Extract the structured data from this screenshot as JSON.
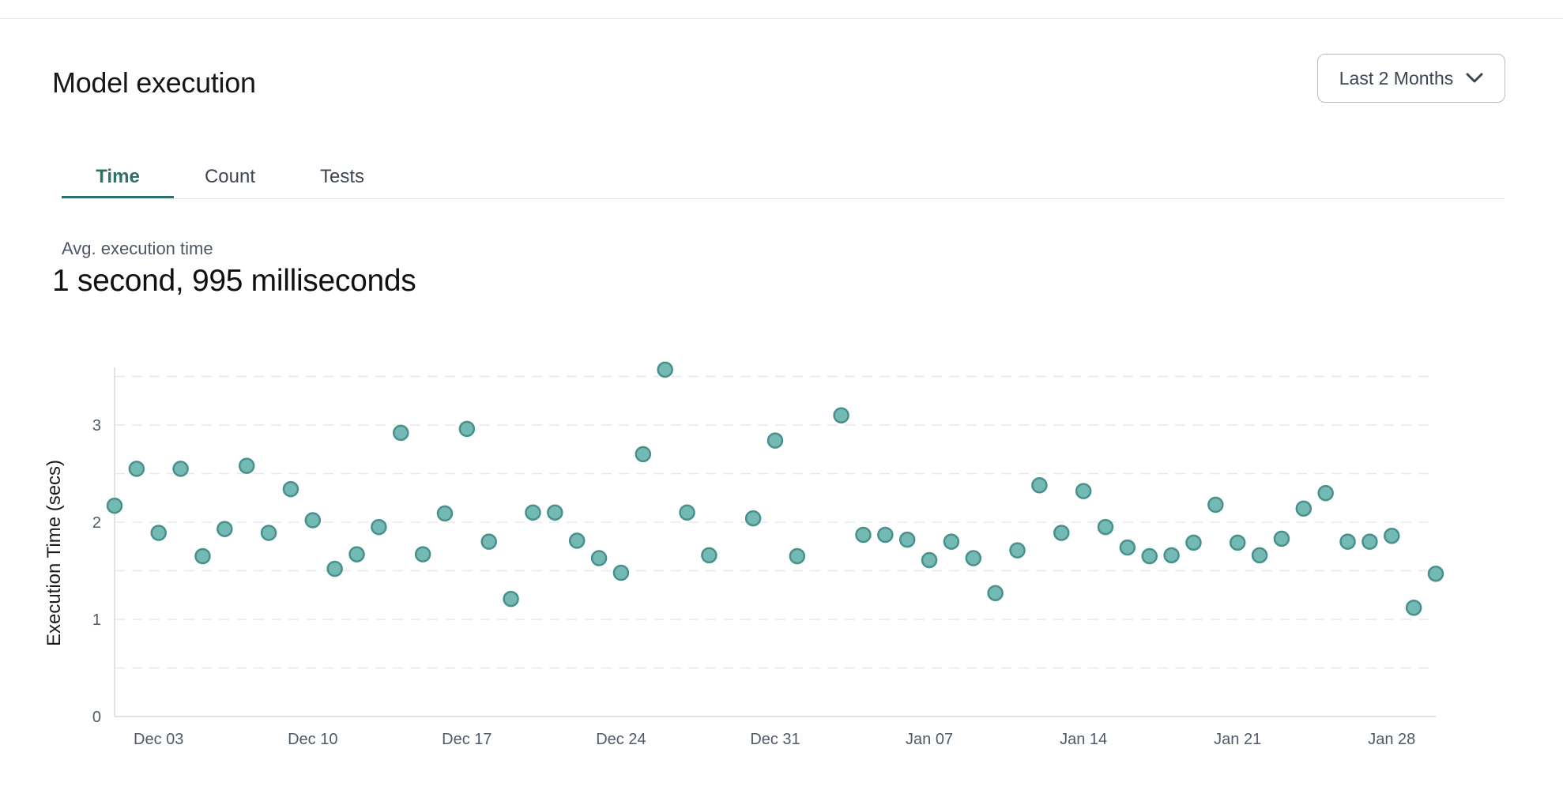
{
  "page": {
    "title": "Model execution"
  },
  "controls": {
    "time_range_dropdown": {
      "value": "Last 2 Months",
      "icon": "chevron-down-icon"
    }
  },
  "tabs": [
    {
      "label": "Time",
      "active": true
    },
    {
      "label": "Count",
      "active": false
    },
    {
      "label": "Tests",
      "active": false
    }
  ],
  "stat": {
    "label": "Avg. execution time",
    "value": "1 second, 995 milliseconds"
  },
  "chart_data": {
    "type": "scatter",
    "title": "",
    "xlabel": "",
    "ylabel": "Execution Time (secs)",
    "ylim": [
      0,
      3.7
    ],
    "y_ticks": [
      0,
      1,
      2,
      3
    ],
    "grid_step": 0.5,
    "grid": "horizontal-dashed",
    "legend": "none",
    "point_color": "#74b9b4",
    "point_border_color": "#47918c",
    "axis_color": "#d5d8dc",
    "grid_color": "#e7e8eb",
    "tick_label_color": "#4f5a67",
    "x_ticks": [
      {
        "label": "Dec 03",
        "day": 2
      },
      {
        "label": "Dec 10",
        "day": 9
      },
      {
        "label": "Dec 17",
        "day": 16
      },
      {
        "label": "Dec 24",
        "day": 23
      },
      {
        "label": "Dec 31",
        "day": 30
      },
      {
        "label": "Jan 07",
        "day": 37
      },
      {
        "label": "Jan 14",
        "day": 44
      },
      {
        "label": "Jan 21",
        "day": 51
      },
      {
        "label": "Jan 28",
        "day": 58
      }
    ],
    "points": [
      {
        "date": "Dec 01",
        "day": 0,
        "secs": 2.17
      },
      {
        "date": "Dec 02",
        "day": 1,
        "secs": 2.55
      },
      {
        "date": "Dec 03",
        "day": 2,
        "secs": 1.89
      },
      {
        "date": "Dec 04",
        "day": 3,
        "secs": 2.55
      },
      {
        "date": "Dec 05",
        "day": 4,
        "secs": 1.65
      },
      {
        "date": "Dec 06",
        "day": 5,
        "secs": 1.93
      },
      {
        "date": "Dec 07",
        "day": 6,
        "secs": 2.58
      },
      {
        "date": "Dec 08",
        "day": 7,
        "secs": 1.89
      },
      {
        "date": "Dec 09",
        "day": 8,
        "secs": 2.34
      },
      {
        "date": "Dec 10",
        "day": 9,
        "secs": 2.02
      },
      {
        "date": "Dec 11",
        "day": 10,
        "secs": 1.52
      },
      {
        "date": "Dec 12",
        "day": 11,
        "secs": 1.67
      },
      {
        "date": "Dec 13",
        "day": 12,
        "secs": 1.95
      },
      {
        "date": "Dec 14",
        "day": 13,
        "secs": 2.92
      },
      {
        "date": "Dec 15",
        "day": 14,
        "secs": 1.67
      },
      {
        "date": "Dec 16",
        "day": 15,
        "secs": 2.09
      },
      {
        "date": "Dec 17",
        "day": 16,
        "secs": 2.96
      },
      {
        "date": "Dec 18",
        "day": 17,
        "secs": 1.8
      },
      {
        "date": "Dec 19",
        "day": 18,
        "secs": 1.21
      },
      {
        "date": "Dec 20",
        "day": 19,
        "secs": 2.1
      },
      {
        "date": "Dec 21",
        "day": 20,
        "secs": 2.1
      },
      {
        "date": "Dec 22",
        "day": 21,
        "secs": 1.81
      },
      {
        "date": "Dec 23",
        "day": 22,
        "secs": 1.63
      },
      {
        "date": "Dec 24",
        "day": 23,
        "secs": 1.48
      },
      {
        "date": "Dec 25",
        "day": 24,
        "secs": 2.7
      },
      {
        "date": "Dec 26",
        "day": 25,
        "secs": 3.57
      },
      {
        "date": "Dec 27",
        "day": 26,
        "secs": 2.1
      },
      {
        "date": "Dec 28",
        "day": 27,
        "secs": 1.66
      },
      {
        "date": "Dec 30",
        "day": 29,
        "secs": 2.04
      },
      {
        "date": "Dec 31",
        "day": 30,
        "secs": 2.84
      },
      {
        "date": "Jan 01",
        "day": 31,
        "secs": 1.65
      },
      {
        "date": "Jan 03",
        "day": 33,
        "secs": 3.1
      },
      {
        "date": "Jan 04",
        "day": 34,
        "secs": 1.87
      },
      {
        "date": "Jan 05",
        "day": 35,
        "secs": 1.87
      },
      {
        "date": "Jan 06",
        "day": 36,
        "secs": 1.82
      },
      {
        "date": "Jan 07",
        "day": 37,
        "secs": 1.61
      },
      {
        "date": "Jan 08",
        "day": 38,
        "secs": 1.8
      },
      {
        "date": "Jan 09",
        "day": 39,
        "secs": 1.63
      },
      {
        "date": "Jan 10",
        "day": 40,
        "secs": 1.27
      },
      {
        "date": "Jan 11",
        "day": 41,
        "secs": 1.71
      },
      {
        "date": "Jan 12",
        "day": 42,
        "secs": 2.38
      },
      {
        "date": "Jan 13",
        "day": 43,
        "secs": 1.89
      },
      {
        "date": "Jan 14",
        "day": 44,
        "secs": 2.32
      },
      {
        "date": "Jan 15",
        "day": 45,
        "secs": 1.95
      },
      {
        "date": "Jan 16",
        "day": 46,
        "secs": 1.74
      },
      {
        "date": "Jan 17",
        "day": 47,
        "secs": 1.65
      },
      {
        "date": "Jan 18",
        "day": 48,
        "secs": 1.66
      },
      {
        "date": "Jan 19",
        "day": 49,
        "secs": 1.79
      },
      {
        "date": "Jan 20",
        "day": 50,
        "secs": 2.18
      },
      {
        "date": "Jan 21",
        "day": 51,
        "secs": 1.79
      },
      {
        "date": "Jan 22",
        "day": 52,
        "secs": 1.66
      },
      {
        "date": "Jan 23",
        "day": 53,
        "secs": 1.83
      },
      {
        "date": "Jan 24",
        "day": 54,
        "secs": 2.14
      },
      {
        "date": "Jan 25",
        "day": 55,
        "secs": 2.3
      },
      {
        "date": "Jan 26",
        "day": 56,
        "secs": 1.8
      },
      {
        "date": "Jan 27",
        "day": 57,
        "secs": 1.8
      },
      {
        "date": "Jan 28",
        "day": 58,
        "secs": 1.86
      },
      {
        "date": "Jan 29",
        "day": 59,
        "secs": 1.12
      },
      {
        "date": "Jan 30",
        "day": 60,
        "secs": 1.47
      }
    ]
  },
  "colors": {
    "accent_teal": "#2e6f6b",
    "point_fill": "#74b9b4",
    "point_stroke": "#47918c",
    "divider": "#e8e9eb",
    "muted_text": "#4c5765"
  }
}
